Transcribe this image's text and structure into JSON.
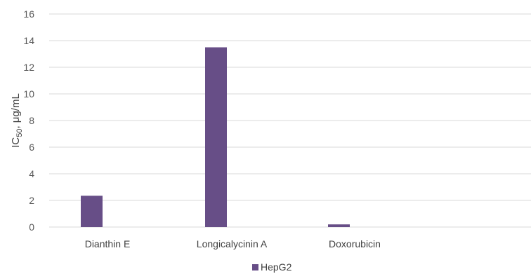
{
  "chart_data": {
    "type": "bar",
    "categories": [
      "Dianthin E",
      "Longicalycinin A",
      "Doxorubicin"
    ],
    "series": [
      {
        "name": "HepG2",
        "values": [
          2.35,
          13.5,
          0.2
        ],
        "color": "#674e87"
      }
    ],
    "ylabel": "IC50, μg/mL",
    "ylabel_main": "IC",
    "ylabel_sub": "50",
    "ylabel_rest": ", μg/mL",
    "ylim": [
      0,
      16
    ],
    "yticks": [
      0,
      2,
      4,
      6,
      8,
      10,
      12,
      14,
      16
    ],
    "grid": true,
    "grid_color": "#d9d9d9",
    "legend_position": "bottom-center"
  }
}
